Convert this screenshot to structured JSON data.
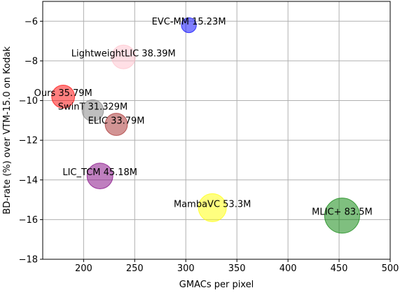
{
  "chart_data": {
    "type": "scatter",
    "title": "",
    "xlabel": "GMACs per pixel",
    "ylabel": "BD-rate (%) over VTM-15.0 on Kodak",
    "xlim": [
      160,
      500
    ],
    "ylim": [
      -18,
      -5
    ],
    "xticks": [
      200,
      250,
      300,
      350,
      400,
      450,
      500
    ],
    "yticks": [
      -18,
      -16,
      -14,
      -12,
      -10,
      -8,
      -6
    ],
    "grid": true,
    "points": [
      {
        "label": "EVC-MM 15.23M",
        "x": 303,
        "y": -6.2,
        "size": 15.23,
        "color": "#0000ff"
      },
      {
        "label": "LightweightLIC 38.39M",
        "x": 239,
        "y": -7.8,
        "size": 38.39,
        "color": "#ffc0cb"
      },
      {
        "label": "Ours 35.79M",
        "x": 180,
        "y": -9.8,
        "size": 35.79,
        "color": "#ff0000"
      },
      {
        "label": "SwinT 31.329M",
        "x": 209,
        "y": -10.5,
        "size": 31.329,
        "color": "#808080"
      },
      {
        "label": "ELIC 33.79M",
        "x": 232,
        "y": -11.2,
        "size": 33.79,
        "color": "#a52a2a"
      },
      {
        "label": "LIC_TCM 45.18M",
        "x": 216,
        "y": -13.8,
        "size": 45.18,
        "color": "#800080"
      },
      {
        "label": "MambaVC 53.3M",
        "x": 326,
        "y": -15.4,
        "size": 53.3,
        "color": "#ffff00"
      },
      {
        "label": "MLIC+ 83.5M",
        "x": 453,
        "y": -15.8,
        "size": 83.5,
        "color": "#008000"
      }
    ]
  }
}
